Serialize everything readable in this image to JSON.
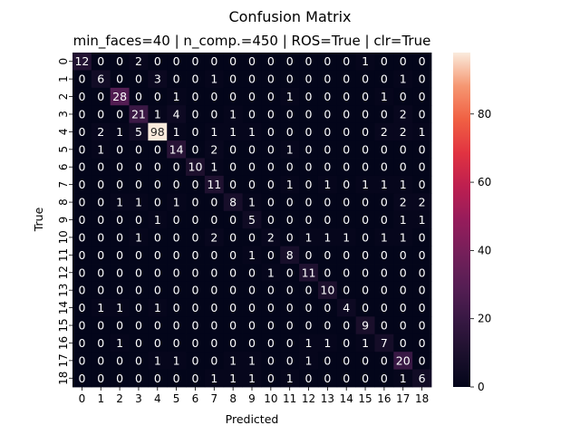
{
  "chart_data": {
    "type": "heatmap",
    "title": "Confusion Matrix",
    "subtitle": "min_faces=40 | n_comp.=450 | ROS=True | clr=True",
    "xlabel": "Predicted",
    "ylabel": "True",
    "x_categories": [
      "0",
      "1",
      "2",
      "3",
      "4",
      "5",
      "6",
      "7",
      "8",
      "9",
      "10",
      "11",
      "12",
      "13",
      "14",
      "15",
      "16",
      "17",
      "18"
    ],
    "y_categories": [
      "0",
      "1",
      "2",
      "3",
      "4",
      "5",
      "6",
      "7",
      "8",
      "9",
      "10",
      "11",
      "12",
      "13",
      "14",
      "15",
      "16",
      "17",
      "18"
    ],
    "values": [
      [
        12,
        0,
        0,
        2,
        0,
        0,
        0,
        0,
        0,
        0,
        0,
        0,
        0,
        0,
        0,
        1,
        0,
        0,
        0
      ],
      [
        0,
        6,
        0,
        0,
        3,
        0,
        0,
        1,
        0,
        0,
        0,
        0,
        0,
        0,
        0,
        0,
        0,
        1,
        0
      ],
      [
        0,
        0,
        28,
        0,
        0,
        1,
        0,
        0,
        0,
        0,
        0,
        1,
        0,
        0,
        0,
        0,
        1,
        0,
        0
      ],
      [
        0,
        0,
        0,
        21,
        1,
        4,
        0,
        0,
        1,
        0,
        0,
        0,
        0,
        0,
        0,
        0,
        0,
        2,
        0
      ],
      [
        0,
        2,
        1,
        5,
        98,
        1,
        0,
        1,
        1,
        1,
        0,
        0,
        0,
        0,
        0,
        0,
        2,
        2,
        1
      ],
      [
        0,
        1,
        0,
        0,
        0,
        14,
        0,
        2,
        0,
        0,
        0,
        1,
        0,
        0,
        0,
        0,
        0,
        0,
        0
      ],
      [
        0,
        0,
        0,
        0,
        0,
        0,
        10,
        1,
        0,
        0,
        0,
        0,
        0,
        0,
        0,
        0,
        0,
        0,
        0
      ],
      [
        0,
        0,
        0,
        0,
        0,
        0,
        0,
        11,
        0,
        0,
        0,
        1,
        0,
        1,
        0,
        1,
        1,
        1,
        0
      ],
      [
        0,
        0,
        1,
        1,
        0,
        1,
        0,
        0,
        8,
        1,
        0,
        0,
        0,
        0,
        0,
        0,
        0,
        2,
        2
      ],
      [
        0,
        0,
        0,
        0,
        1,
        0,
        0,
        0,
        0,
        5,
        0,
        0,
        0,
        0,
        0,
        0,
        0,
        1,
        1
      ],
      [
        0,
        0,
        0,
        1,
        0,
        0,
        0,
        2,
        0,
        0,
        2,
        0,
        1,
        1,
        1,
        0,
        1,
        1,
        0
      ],
      [
        0,
        0,
        0,
        0,
        0,
        0,
        0,
        0,
        0,
        1,
        0,
        8,
        0,
        0,
        0,
        0,
        0,
        0,
        0
      ],
      [
        0,
        0,
        0,
        0,
        0,
        0,
        0,
        0,
        0,
        0,
        1,
        0,
        11,
        0,
        0,
        0,
        0,
        0,
        0
      ],
      [
        0,
        0,
        0,
        0,
        0,
        0,
        0,
        0,
        0,
        0,
        0,
        0,
        0,
        10,
        0,
        0,
        0,
        0,
        0
      ],
      [
        0,
        1,
        1,
        0,
        1,
        0,
        0,
        0,
        0,
        0,
        0,
        0,
        0,
        0,
        4,
        0,
        0,
        0,
        0
      ],
      [
        0,
        0,
        0,
        0,
        0,
        0,
        0,
        0,
        0,
        0,
        0,
        0,
        0,
        0,
        0,
        9,
        0,
        0,
        0
      ],
      [
        0,
        0,
        1,
        0,
        0,
        0,
        0,
        0,
        0,
        0,
        0,
        0,
        1,
        1,
        0,
        1,
        7,
        0,
        0
      ],
      [
        0,
        0,
        0,
        0,
        1,
        1,
        0,
        0,
        1,
        1,
        0,
        0,
        1,
        0,
        0,
        0,
        0,
        20,
        0
      ],
      [
        0,
        0,
        0,
        0,
        0,
        0,
        0,
        1,
        1,
        1,
        0,
        1,
        0,
        0,
        0,
        0,
        0,
        1,
        6
      ]
    ],
    "vmin": 0,
    "vmax": 98,
    "colorbar_ticks": [
      0,
      20,
      40,
      60,
      80
    ],
    "colormap": "rocket"
  }
}
